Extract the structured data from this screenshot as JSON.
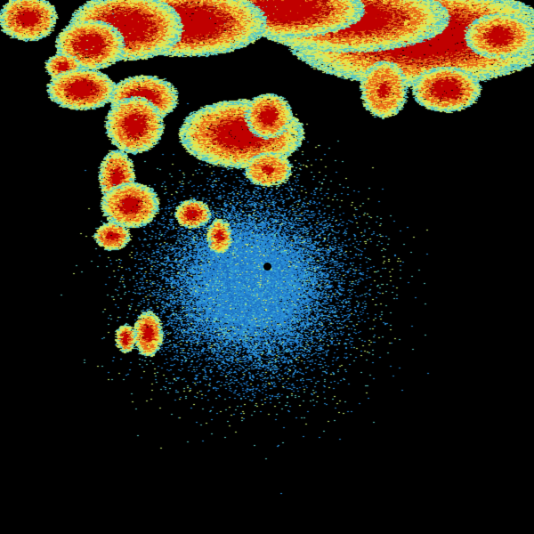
{
  "radar": {
    "background": "#000000",
    "palette": {
      "light_blue": "#2a8fd8",
      "blue": "#1a6fc0",
      "cyan": "#58c8c0",
      "green_yellow": "#c8ec70",
      "yellow": "#f0e040",
      "orange": "#e86818",
      "red": "#c00000",
      "dark_red": "#a80000"
    },
    "site_marker_color": "#000000"
  }
}
